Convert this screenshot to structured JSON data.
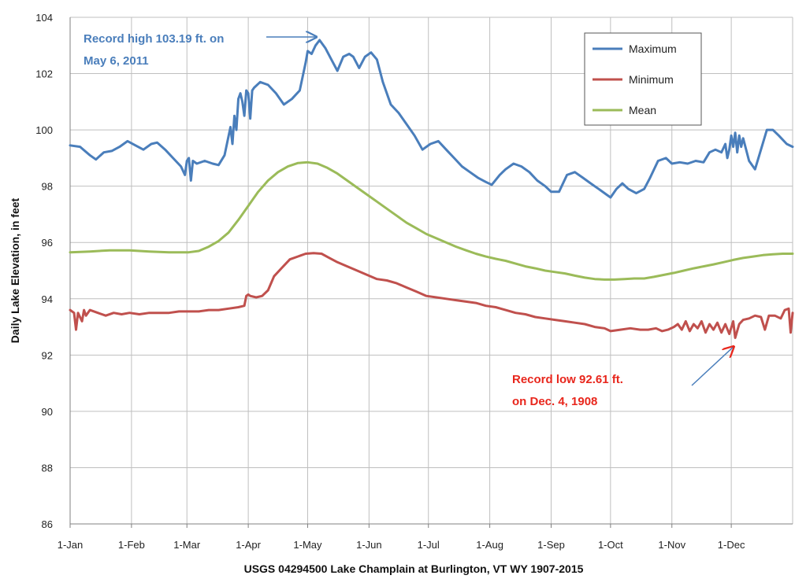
{
  "chart_data": {
    "type": "line",
    "title": "",
    "xlabel": "USGS 04294500 Lake Champlain at Burlington, VT WY 1907-2015",
    "ylabel": "Daily Lake Elevation, in feet",
    "ylim": [
      86,
      104
    ],
    "yticks": [
      86,
      88,
      90,
      92,
      94,
      96,
      98,
      100,
      102,
      104
    ],
    "xlim": [
      0,
      365
    ],
    "xticks": [
      {
        "label": "1-Jan",
        "day": 0
      },
      {
        "label": "1-Feb",
        "day": 31
      },
      {
        "label": "1-Mar",
        "day": 59
      },
      {
        "label": "1-Apr",
        "day": 90
      },
      {
        "label": "1-May",
        "day": 120
      },
      {
        "label": "1-Jun",
        "day": 151
      },
      {
        "label": "1-Jul",
        "day": 181
      },
      {
        "label": "1-Aug",
        "day": 212
      },
      {
        "label": "1-Sep",
        "day": 243
      },
      {
        "label": "1-Oct",
        "day": 273
      },
      {
        "label": "1-Nov",
        "day": 304
      },
      {
        "label": "1-Dec",
        "day": 334
      }
    ],
    "grid": true,
    "legend_position": "top-right",
    "series": [
      {
        "name": "Maximum",
        "color": "#4a7ebb",
        "points": [
          [
            0,
            99.45
          ],
          [
            5,
            99.4
          ],
          [
            10,
            99.1
          ],
          [
            13,
            98.95
          ],
          [
            17,
            99.2
          ],
          [
            21,
            99.25
          ],
          [
            25,
            99.4
          ],
          [
            29,
            99.6
          ],
          [
            33,
            99.45
          ],
          [
            37,
            99.3
          ],
          [
            41,
            99.5
          ],
          [
            44,
            99.55
          ],
          [
            48,
            99.3
          ],
          [
            52,
            99.0
          ],
          [
            56,
            98.7
          ],
          [
            58,
            98.4
          ],
          [
            59,
            98.9
          ],
          [
            60,
            99.0
          ],
          [
            61,
            98.2
          ],
          [
            62,
            98.9
          ],
          [
            64,
            98.8
          ],
          [
            68,
            98.9
          ],
          [
            72,
            98.8
          ],
          [
            75,
            98.75
          ],
          [
            78,
            99.1
          ],
          [
            81,
            100.1
          ],
          [
            82,
            99.5
          ],
          [
            83,
            100.5
          ],
          [
            84,
            100.0
          ],
          [
            85,
            101.1
          ],
          [
            86,
            101.3
          ],
          [
            87,
            101.0
          ],
          [
            88,
            100.5
          ],
          [
            89,
            101.4
          ],
          [
            90,
            101.3
          ],
          [
            91,
            100.4
          ],
          [
            92,
            101.4
          ],
          [
            93,
            101.5
          ],
          [
            96,
            101.7
          ],
          [
            100,
            101.6
          ],
          [
            104,
            101.3
          ],
          [
            108,
            100.9
          ],
          [
            112,
            101.1
          ],
          [
            116,
            101.4
          ],
          [
            119,
            102.4
          ],
          [
            120,
            102.8
          ],
          [
            122,
            102.7
          ],
          [
            124,
            103.0
          ],
          [
            126,
            103.19
          ],
          [
            129,
            102.9
          ],
          [
            132,
            102.5
          ],
          [
            135,
            102.1
          ],
          [
            138,
            102.6
          ],
          [
            141,
            102.7
          ],
          [
            143,
            102.6
          ],
          [
            146,
            102.2
          ],
          [
            149,
            102.6
          ],
          [
            152,
            102.75
          ],
          [
            155,
            102.5
          ],
          [
            158,
            101.7
          ],
          [
            162,
            100.9
          ],
          [
            166,
            100.6
          ],
          [
            170,
            100.2
          ],
          [
            174,
            99.8
          ],
          [
            178,
            99.3
          ],
          [
            182,
            99.5
          ],
          [
            186,
            99.6
          ],
          [
            190,
            99.3
          ],
          [
            194,
            99.0
          ],
          [
            198,
            98.7
          ],
          [
            202,
            98.5
          ],
          [
            206,
            98.3
          ],
          [
            210,
            98.15
          ],
          [
            213,
            98.05
          ],
          [
            217,
            98.4
          ],
          [
            220,
            98.6
          ],
          [
            224,
            98.8
          ],
          [
            228,
            98.7
          ],
          [
            232,
            98.5
          ],
          [
            236,
            98.2
          ],
          [
            240,
            98.0
          ],
          [
            243,
            97.8
          ],
          [
            247,
            97.8
          ],
          [
            251,
            98.4
          ],
          [
            255,
            98.5
          ],
          [
            259,
            98.3
          ],
          [
            263,
            98.1
          ],
          [
            267,
            97.9
          ],
          [
            271,
            97.7
          ],
          [
            273,
            97.6
          ],
          [
            276,
            97.9
          ],
          [
            279,
            98.1
          ],
          [
            282,
            97.9
          ],
          [
            286,
            97.75
          ],
          [
            290,
            97.9
          ],
          [
            293,
            98.3
          ],
          [
            297,
            98.9
          ],
          [
            301,
            99.0
          ],
          [
            304,
            98.8
          ],
          [
            308,
            98.85
          ],
          [
            312,
            98.8
          ],
          [
            316,
            98.9
          ],
          [
            320,
            98.85
          ],
          [
            323,
            99.2
          ],
          [
            326,
            99.3
          ],
          [
            329,
            99.2
          ],
          [
            331,
            99.5
          ],
          [
            332,
            99.0
          ],
          [
            333,
            99.3
          ],
          [
            334,
            99.8
          ],
          [
            335,
            99.4
          ],
          [
            336,
            99.9
          ],
          [
            337,
            99.2
          ],
          [
            338,
            99.8
          ],
          [
            339,
            99.4
          ],
          [
            340,
            99.7
          ],
          [
            343,
            98.9
          ],
          [
            346,
            98.6
          ],
          [
            349,
            99.3
          ],
          [
            352,
            100.0
          ],
          [
            355,
            100.0
          ],
          [
            358,
            99.8
          ],
          [
            362,
            99.5
          ],
          [
            365,
            99.4
          ]
        ]
      },
      {
        "name": "Minimum",
        "color": "#c0504d",
        "points": [
          [
            0,
            93.6
          ],
          [
            2,
            93.5
          ],
          [
            3,
            92.9
          ],
          [
            4,
            93.5
          ],
          [
            6,
            93.2
          ],
          [
            7,
            93.6
          ],
          [
            8,
            93.4
          ],
          [
            10,
            93.6
          ],
          [
            14,
            93.5
          ],
          [
            18,
            93.4
          ],
          [
            22,
            93.5
          ],
          [
            26,
            93.45
          ],
          [
            30,
            93.5
          ],
          [
            35,
            93.45
          ],
          [
            40,
            93.5
          ],
          [
            45,
            93.5
          ],
          [
            50,
            93.5
          ],
          [
            55,
            93.55
          ],
          [
            60,
            93.55
          ],
          [
            65,
            93.55
          ],
          [
            70,
            93.6
          ],
          [
            75,
            93.6
          ],
          [
            80,
            93.65
          ],
          [
            85,
            93.7
          ],
          [
            88,
            93.75
          ],
          [
            89,
            94.1
          ],
          [
            90,
            94.15
          ],
          [
            91,
            94.1
          ],
          [
            94,
            94.05
          ],
          [
            97,
            94.1
          ],
          [
            100,
            94.3
          ],
          [
            103,
            94.8
          ],
          [
            107,
            95.1
          ],
          [
            111,
            95.4
          ],
          [
            115,
            95.5
          ],
          [
            119,
            95.6
          ],
          [
            123,
            95.62
          ],
          [
            127,
            95.6
          ],
          [
            131,
            95.45
          ],
          [
            135,
            95.3
          ],
          [
            140,
            95.15
          ],
          [
            145,
            95.0
          ],
          [
            150,
            94.85
          ],
          [
            155,
            94.7
          ],
          [
            160,
            94.65
          ],
          [
            165,
            94.55
          ],
          [
            170,
            94.4
          ],
          [
            175,
            94.25
          ],
          [
            180,
            94.1
          ],
          [
            185,
            94.05
          ],
          [
            190,
            94.0
          ],
          [
            195,
            93.95
          ],
          [
            200,
            93.9
          ],
          [
            205,
            93.85
          ],
          [
            210,
            93.75
          ],
          [
            215,
            93.7
          ],
          [
            220,
            93.6
          ],
          [
            225,
            93.5
          ],
          [
            230,
            93.45
          ],
          [
            235,
            93.35
          ],
          [
            240,
            93.3
          ],
          [
            245,
            93.25
          ],
          [
            250,
            93.2
          ],
          [
            255,
            93.15
          ],
          [
            260,
            93.1
          ],
          [
            265,
            93.0
          ],
          [
            270,
            92.95
          ],
          [
            273,
            92.85
          ],
          [
            278,
            92.9
          ],
          [
            283,
            92.95
          ],
          [
            288,
            92.9
          ],
          [
            292,
            92.9
          ],
          [
            296,
            92.95
          ],
          [
            299,
            92.85
          ],
          [
            302,
            92.9
          ],
          [
            305,
            93.0
          ],
          [
            307,
            93.1
          ],
          [
            309,
            92.9
          ],
          [
            311,
            93.2
          ],
          [
            313,
            92.85
          ],
          [
            315,
            93.1
          ],
          [
            317,
            92.95
          ],
          [
            319,
            93.2
          ],
          [
            321,
            92.8
          ],
          [
            323,
            93.1
          ],
          [
            325,
            92.9
          ],
          [
            327,
            93.15
          ],
          [
            329,
            92.8
          ],
          [
            331,
            93.1
          ],
          [
            333,
            92.75
          ],
          [
            335,
            93.2
          ],
          [
            336,
            92.61
          ],
          [
            338,
            93.1
          ],
          [
            340,
            93.25
          ],
          [
            343,
            93.3
          ],
          [
            346,
            93.4
          ],
          [
            349,
            93.35
          ],
          [
            351,
            92.9
          ],
          [
            353,
            93.4
          ],
          [
            356,
            93.4
          ],
          [
            359,
            93.3
          ],
          [
            361,
            93.6
          ],
          [
            363,
            93.65
          ],
          [
            364,
            92.8
          ],
          [
            365,
            93.5
          ]
        ]
      },
      {
        "name": "Mean",
        "color": "#9bbb59",
        "points": [
          [
            0,
            95.65
          ],
          [
            10,
            95.68
          ],
          [
            20,
            95.72
          ],
          [
            30,
            95.72
          ],
          [
            40,
            95.68
          ],
          [
            50,
            95.65
          ],
          [
            60,
            95.65
          ],
          [
            65,
            95.7
          ],
          [
            70,
            95.85
          ],
          [
            75,
            96.05
          ],
          [
            80,
            96.35
          ],
          [
            85,
            96.8
          ],
          [
            90,
            97.3
          ],
          [
            95,
            97.8
          ],
          [
            100,
            98.2
          ],
          [
            105,
            98.5
          ],
          [
            110,
            98.7
          ],
          [
            115,
            98.82
          ],
          [
            120,
            98.85
          ],
          [
            125,
            98.8
          ],
          [
            130,
            98.65
          ],
          [
            135,
            98.45
          ],
          [
            140,
            98.2
          ],
          [
            145,
            97.95
          ],
          [
            150,
            97.7
          ],
          [
            155,
            97.45
          ],
          [
            160,
            97.2
          ],
          [
            165,
            96.95
          ],
          [
            170,
            96.7
          ],
          [
            175,
            96.5
          ],
          [
            180,
            96.3
          ],
          [
            185,
            96.15
          ],
          [
            190,
            96.0
          ],
          [
            195,
            95.85
          ],
          [
            200,
            95.72
          ],
          [
            205,
            95.6
          ],
          [
            210,
            95.5
          ],
          [
            215,
            95.42
          ],
          [
            220,
            95.35
          ],
          [
            225,
            95.25
          ],
          [
            230,
            95.15
          ],
          [
            235,
            95.08
          ],
          [
            240,
            95.0
          ],
          [
            245,
            94.95
          ],
          [
            250,
            94.9
          ],
          [
            255,
            94.82
          ],
          [
            260,
            94.75
          ],
          [
            265,
            94.7
          ],
          [
            270,
            94.68
          ],
          [
            275,
            94.68
          ],
          [
            280,
            94.7
          ],
          [
            285,
            94.72
          ],
          [
            290,
            94.72
          ],
          [
            295,
            94.78
          ],
          [
            300,
            94.85
          ],
          [
            305,
            94.92
          ],
          [
            310,
            95.0
          ],
          [
            315,
            95.08
          ],
          [
            320,
            95.15
          ],
          [
            325,
            95.22
          ],
          [
            330,
            95.3
          ],
          [
            335,
            95.38
          ],
          [
            340,
            95.45
          ],
          [
            345,
            95.5
          ],
          [
            350,
            95.55
          ],
          [
            355,
            95.58
          ],
          [
            360,
            95.6
          ],
          [
            365,
            95.6
          ]
        ]
      }
    ],
    "annotations": [
      {
        "id": "high",
        "lines": [
          "Record high 103.19 ft. on",
          "May 6, 2011"
        ],
        "color": "#4a7ebb",
        "arrow_to": [
          126,
          103.19
        ]
      },
      {
        "id": "low",
        "lines": [
          "Record low 92.61 ft.",
          "on Dec. 4, 1908"
        ],
        "color": "#e8261c",
        "arrow_to": [
          336,
          92.3
        ]
      }
    ]
  }
}
